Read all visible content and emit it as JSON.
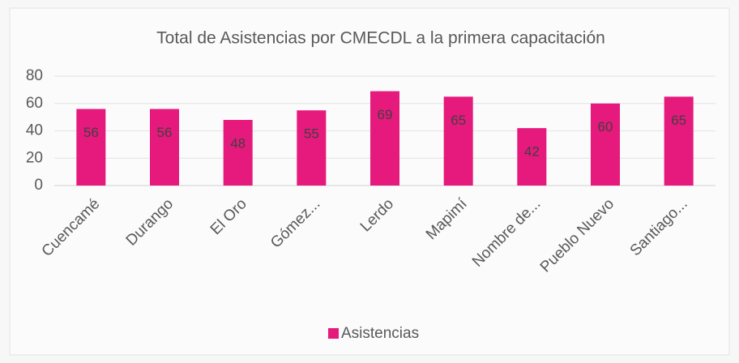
{
  "chart_data": {
    "type": "bar",
    "title": "Total de Asistencias por CMECDL a la primera capacitación",
    "categories": [
      "Cuencamé",
      "Durango",
      "El Oro",
      "Gómez...",
      "Lerdo",
      "Mapimí",
      "Nombre de...",
      "Pueblo Nuevo",
      "Santiago..."
    ],
    "series": [
      {
        "name": "Asistencias",
        "color": "#e6197d",
        "values": [
          56,
          56,
          48,
          55,
          69,
          65,
          42,
          60,
          65
        ]
      }
    ],
    "ylim": [
      0,
      80
    ],
    "yticks": [
      0,
      20,
      40,
      60,
      80
    ],
    "grid": true,
    "legend": "bottom"
  }
}
